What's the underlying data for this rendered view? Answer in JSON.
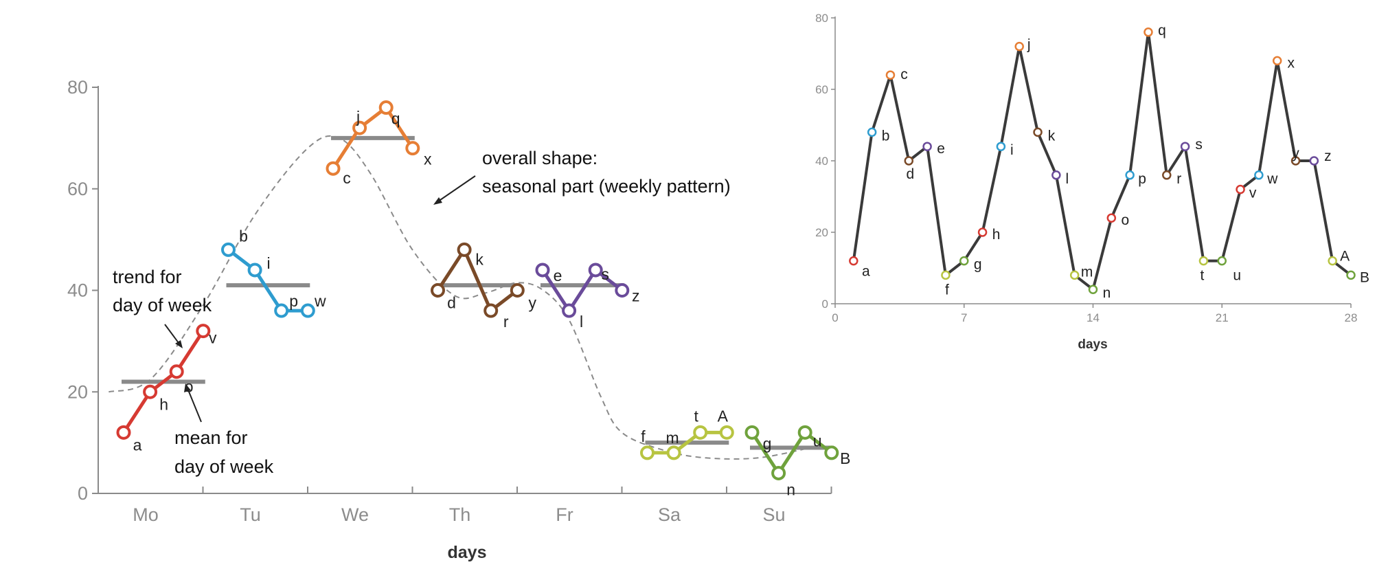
{
  "chart_data": [
    {
      "type": "line",
      "title": "",
      "xlabel": "days",
      "ylabel": "",
      "ylim": [
        0,
        80
      ],
      "yticks": [
        "0",
        "20",
        "40",
        "60",
        "80"
      ],
      "categories": [
        "Mo",
        "Tu",
        "We",
        "Th",
        "Fr",
        "Sa",
        "Su"
      ],
      "colors": {
        "Mo": "#d63a32",
        "Tu": "#2e9ccf",
        "We": "#e67e35",
        "Th": "#7a4a28",
        "Fr": "#6a4b9a",
        "Sa": "#b7c441",
        "Su": "#6fa23c",
        "mean": "#8a8a8a",
        "shape": "#8a8a8a"
      },
      "series": [
        {
          "name": "Mo",
          "points": [
            {
              "label": "a",
              "week": 1,
              "value": 12
            },
            {
              "label": "h",
              "week": 2,
              "value": 20
            },
            {
              "label": "o",
              "week": 3,
              "value": 24
            },
            {
              "label": "v",
              "week": 4,
              "value": 32
            }
          ],
          "mean": 22
        },
        {
          "name": "Tu",
          "points": [
            {
              "label": "b",
              "week": 1,
              "value": 48
            },
            {
              "label": "i",
              "week": 2,
              "value": 44
            },
            {
              "label": "p",
              "week": 3,
              "value": 36
            },
            {
              "label": "w",
              "week": 4,
              "value": 36
            }
          ],
          "mean": 41
        },
        {
          "name": "We",
          "points": [
            {
              "label": "c",
              "week": 1,
              "value": 64
            },
            {
              "label": "j",
              "week": 2,
              "value": 72
            },
            {
              "label": "q",
              "week": 3,
              "value": 76
            },
            {
              "label": "x",
              "week": 4,
              "value": 68
            }
          ],
          "mean": 70
        },
        {
          "name": "Th",
          "points": [
            {
              "label": "d",
              "week": 1,
              "value": 40
            },
            {
              "label": "k",
              "week": 2,
              "value": 48
            },
            {
              "label": "r",
              "week": 3,
              "value": 36
            },
            {
              "label": "y",
              "week": 4,
              "value": 40
            }
          ],
          "mean": 41
        },
        {
          "name": "Fr",
          "points": [
            {
              "label": "e",
              "week": 1,
              "value": 44
            },
            {
              "label": "l",
              "week": 2,
              "value": 36
            },
            {
              "label": "s",
              "week": 3,
              "value": 44
            },
            {
              "label": "z",
              "week": 4,
              "value": 40
            }
          ],
          "mean": 41
        },
        {
          "name": "Sa",
          "points": [
            {
              "label": "f",
              "week": 1,
              "value": 8
            },
            {
              "label": "m",
              "week": 2,
              "value": 8
            },
            {
              "label": "t",
              "week": 3,
              "value": 12
            },
            {
              "label": "A",
              "week": 4,
              "value": 12
            }
          ],
          "mean": 10
        },
        {
          "name": "Su",
          "points": [
            {
              "label": "g",
              "week": 1,
              "value": 12
            },
            {
              "label": "n",
              "week": 2,
              "value": 4
            },
            {
              "label": "u",
              "week": 3,
              "value": 12
            },
            {
              "label": "B",
              "week": 4,
              "value": 8
            }
          ],
          "mean": 9
        }
      ],
      "overall_shape": [
        [
          0.1,
          20
        ],
        [
          0.5,
          22.5
        ],
        [
          1.0,
          37
        ],
        [
          1.5,
          55
        ],
        [
          2.0,
          68
        ],
        [
          2.3,
          70
        ],
        [
          2.6,
          63
        ],
        [
          3.0,
          48
        ],
        [
          3.4,
          39
        ],
        [
          3.7,
          39.5
        ],
        [
          4.0,
          41.5
        ],
        [
          4.25,
          40
        ],
        [
          4.5,
          34
        ],
        [
          4.8,
          19
        ],
        [
          5.0,
          12
        ],
        [
          5.4,
          8.5
        ],
        [
          5.8,
          7
        ],
        [
          6.3,
          7
        ],
        [
          6.8,
          9
        ]
      ],
      "annotations": {
        "trend": [
          "trend for",
          "day of week"
        ],
        "mean": [
          "mean for",
          "day of week"
        ],
        "shape": [
          "overall shape:",
          "seasonal part (weekly pattern)"
        ]
      }
    },
    {
      "type": "line",
      "title": "",
      "xlabel": "days",
      "ylabel": "",
      "xlim": [
        0,
        28
      ],
      "ylim": [
        0,
        80
      ],
      "xticks": [
        "0",
        "7",
        "14",
        "21",
        "28"
      ],
      "yticks": [
        "0",
        "20",
        "40",
        "60",
        "80"
      ],
      "series": [
        {
          "name": "days",
          "points": [
            {
              "label": "a",
              "day": 1,
              "value": 12
            },
            {
              "label": "b",
              "day": 2,
              "value": 48
            },
            {
              "label": "c",
              "day": 3,
              "value": 64
            },
            {
              "label": "d",
              "day": 4,
              "value": 40
            },
            {
              "label": "e",
              "day": 5,
              "value": 44
            },
            {
              "label": "f",
              "day": 6,
              "value": 8
            },
            {
              "label": "g",
              "day": 7,
              "value": 12
            },
            {
              "label": "h",
              "day": 8,
              "value": 20
            },
            {
              "label": "i",
              "day": 9,
              "value": 44
            },
            {
              "label": "j",
              "day": 10,
              "value": 72
            },
            {
              "label": "k",
              "day": 11,
              "value": 48
            },
            {
              "label": "l",
              "day": 12,
              "value": 36
            },
            {
              "label": "m",
              "day": 13,
              "value": 8
            },
            {
              "label": "n",
              "day": 14,
              "value": 4
            },
            {
              "label": "o",
              "day": 15,
              "value": 24
            },
            {
              "label": "p",
              "day": 16,
              "value": 36
            },
            {
              "label": "q",
              "day": 17,
              "value": 76
            },
            {
              "label": "r",
              "day": 18,
              "value": 36
            },
            {
              "label": "s",
              "day": 19,
              "value": 44
            },
            {
              "label": "t",
              "day": 20,
              "value": 12
            },
            {
              "label": "u",
              "day": 21,
              "value": 12
            },
            {
              "label": "v",
              "day": 22,
              "value": 32
            },
            {
              "label": "w",
              "day": 23,
              "value": 36
            },
            {
              "label": "x",
              "day": 24,
              "value": 68
            },
            {
              "label": "y",
              "day": 25,
              "value": 40
            },
            {
              "label": "z",
              "day": 26,
              "value": 40
            },
            {
              "label": "A",
              "day": 27,
              "value": 12
            },
            {
              "label": "B",
              "day": 28,
              "value": 8
            }
          ]
        }
      ]
    }
  ]
}
